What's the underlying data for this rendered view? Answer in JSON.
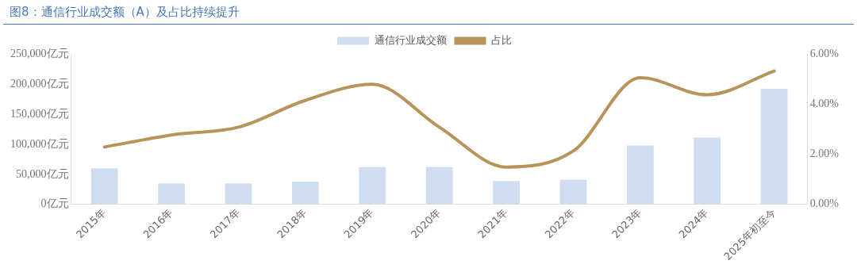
{
  "chart_data": {
    "type": "bar",
    "title": "图8：通信行业成交额（A）及占比持续提升",
    "categories": [
      "2015年",
      "2016年",
      "2017年",
      "2018年",
      "2019年",
      "2020年",
      "2021年",
      "2022年",
      "2023年",
      "2024年",
      "2025年初至今"
    ],
    "series": [
      {
        "name": "通信行业成交额",
        "color": "#d0ddf0",
        "values": [
          60000,
          35000,
          35000,
          38000,
          62000,
          62000,
          39000,
          41000,
          98000,
          111000,
          192000
        ]
      },
      {
        "name": "占比",
        "type": "line",
        "axis": "y2",
        "color": "#b8935a",
        "values": [
          2.29,
          2.77,
          3.08,
          4.15,
          4.79,
          3.08,
          1.49,
          2.13,
          5.05,
          4.37,
          5.32
        ]
      }
    ],
    "ylim": [
      0,
      250000
    ],
    "yticks": [
      {
        "value": 0,
        "label": "0亿元"
      },
      {
        "value": 50000,
        "label": "50,000亿元"
      },
      {
        "value": 100000,
        "label": "100,000亿元"
      },
      {
        "value": 150000,
        "label": "150,000亿元"
      },
      {
        "value": 200000,
        "label": "200,000亿元"
      },
      {
        "value": 250000,
        "label": "250,000亿元"
      }
    ],
    "y2lim": [
      0,
      6
    ],
    "y2ticks": [
      {
        "value": 0,
        "label": "0.00%"
      },
      {
        "value": 2,
        "label": "2.00%"
      },
      {
        "value": 4,
        "label": "4.00%"
      },
      {
        "value": 6,
        "label": "6.00%"
      }
    ],
    "legend": "top",
    "grid": false,
    "marker": "none",
    "line_style": "solid"
  }
}
